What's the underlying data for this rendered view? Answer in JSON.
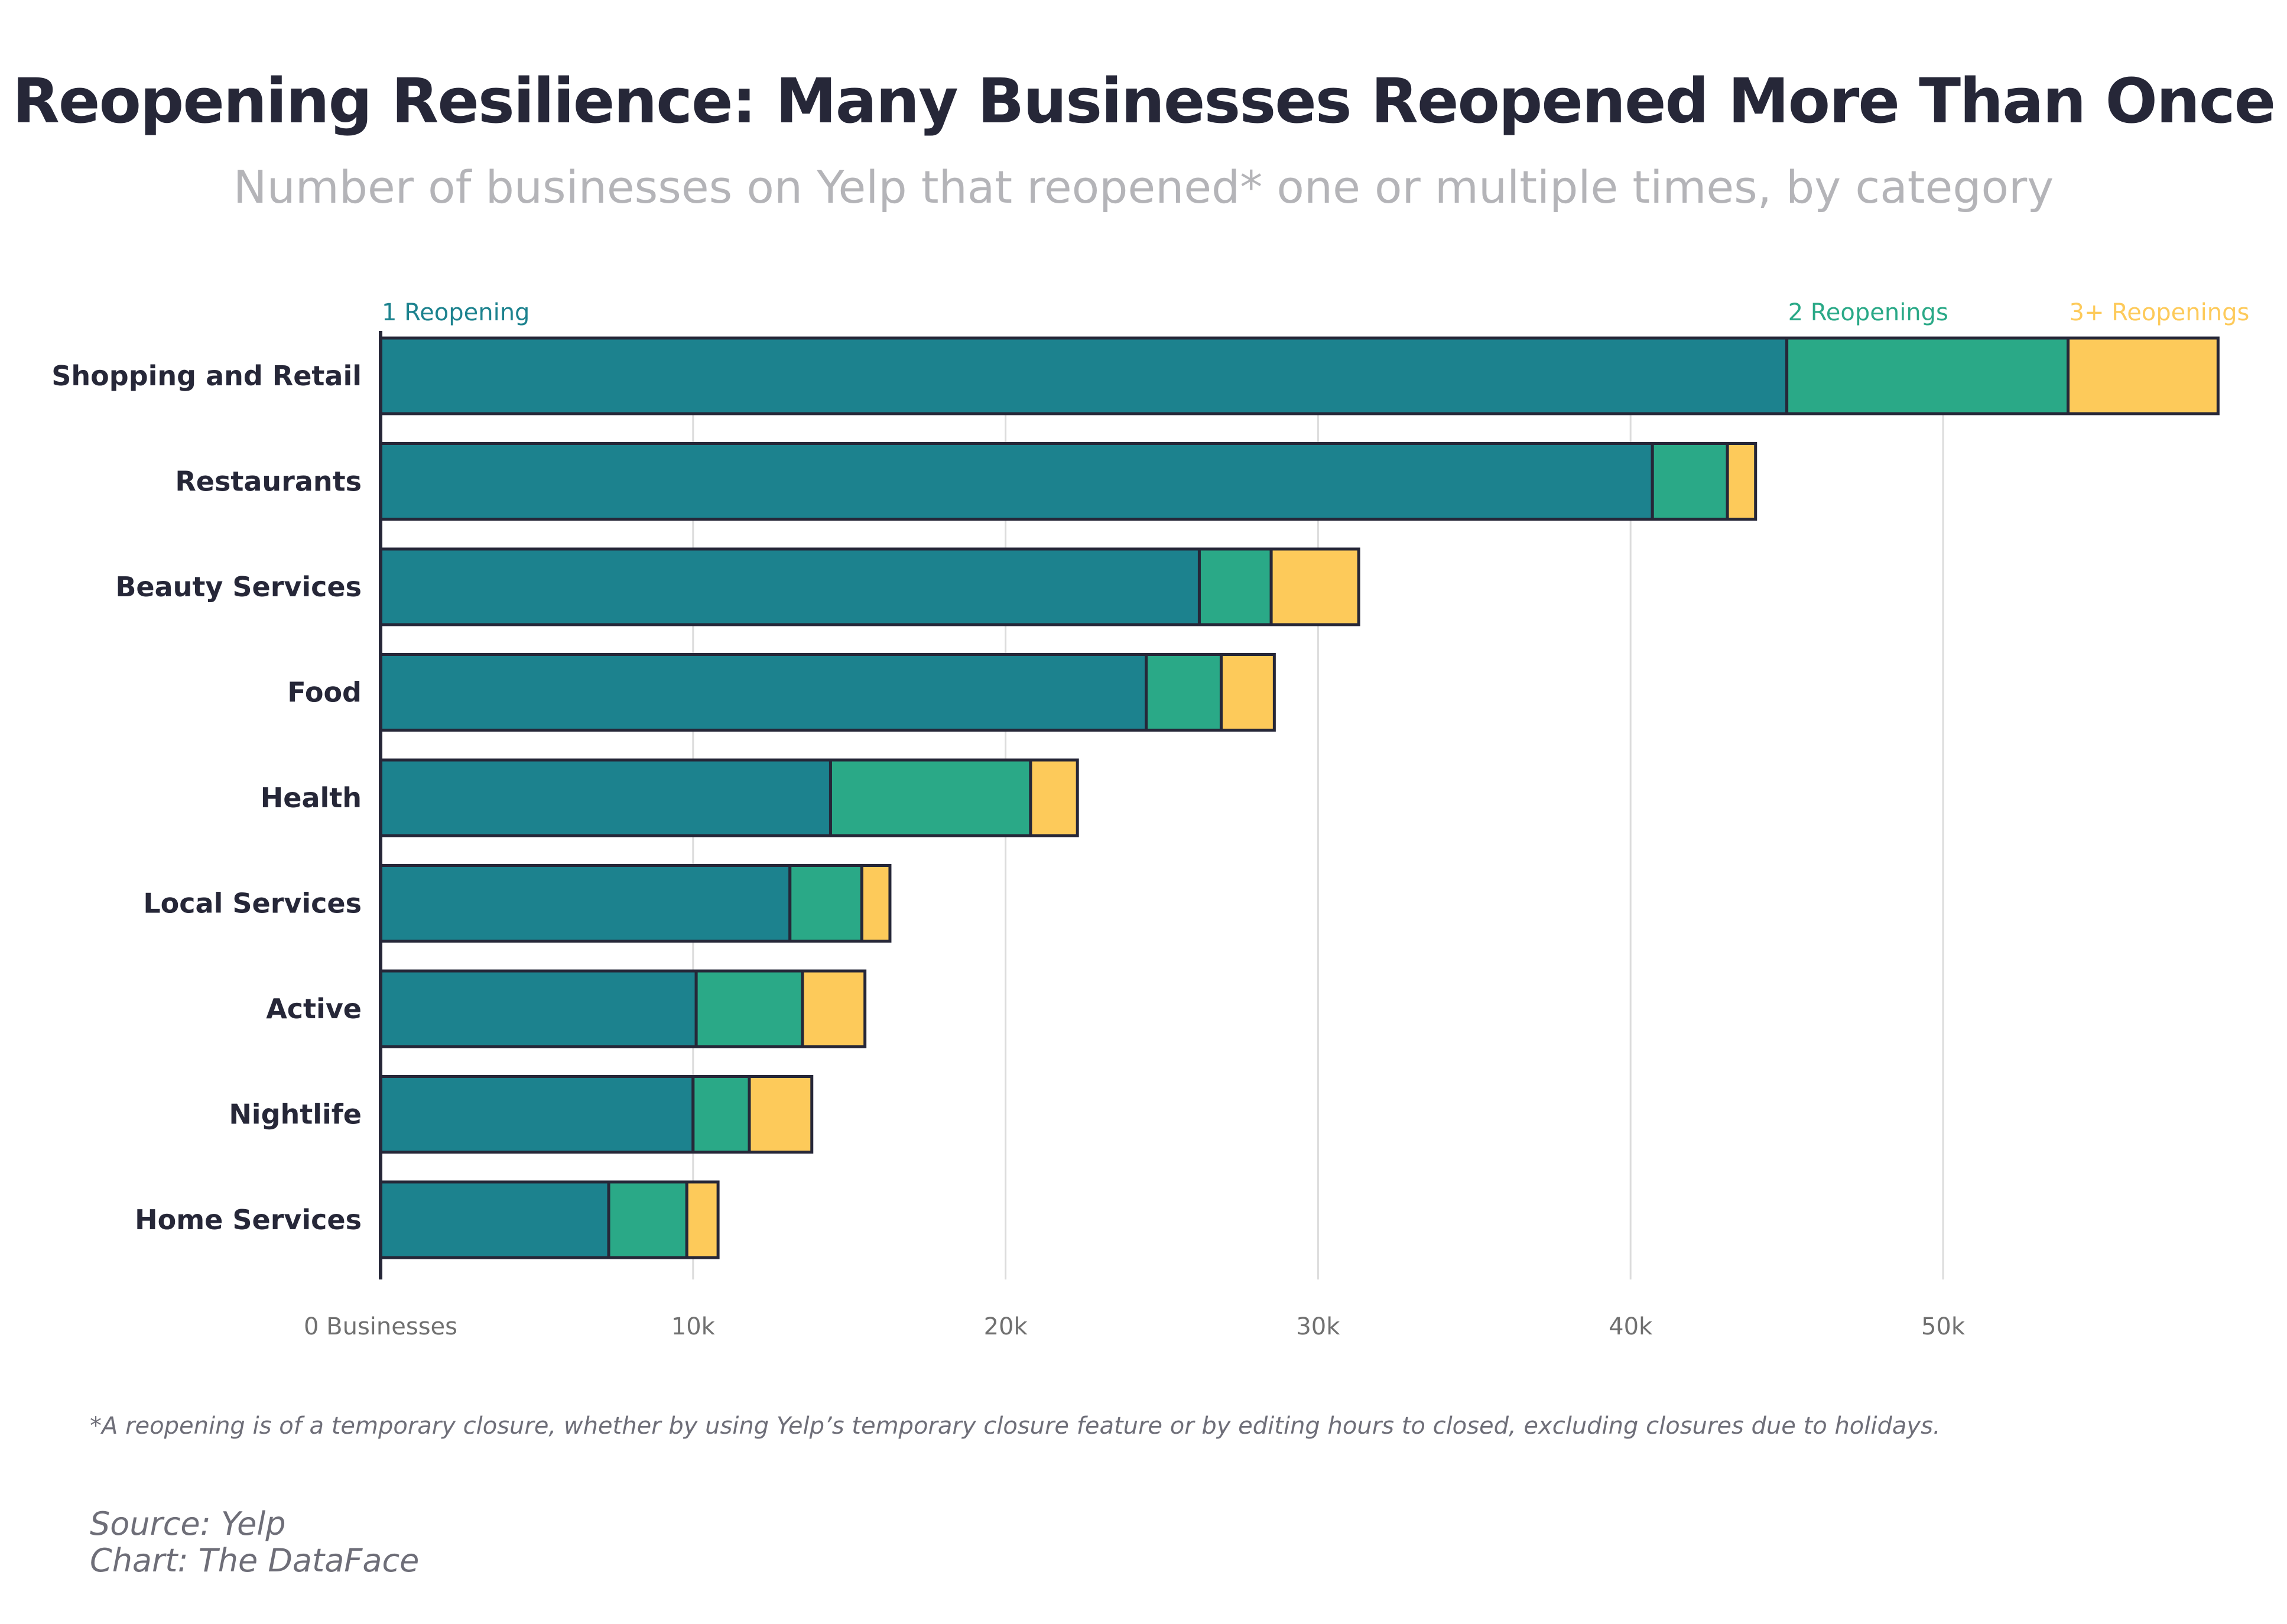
{
  "title": "Reopening Resilience: Many Businesses Reopened More Than Once",
  "subtitle": "Number of businesses on Yelp that reopened* one or multiple times, by category",
  "footnote": "*A reopening is of a temporary closure, whether by using Yelp’s temporary closure feature or by editing hours to closed, excluding closures due to holidays.",
  "source": "Source: Yelp",
  "credit": "Chart: The DataFace",
  "colors": {
    "one": "#1c828e",
    "two": "#2aa987",
    "three": "#fdca5a",
    "outline": "#262738",
    "grid": "#dcdcdc"
  },
  "chart_data": {
    "type": "bar",
    "orientation": "horizontal",
    "stacked": true,
    "categories": [
      "Shopping and Retail",
      "Restaurants",
      "Beauty Services",
      "Food",
      "Health",
      "Local Services",
      "Active",
      "Nightlife",
      "Home Services"
    ],
    "series": [
      {
        "name": "1 Reopening",
        "values": [
          45000,
          40700,
          26200,
          24500,
          14400,
          13100,
          10100,
          10000,
          7300
        ]
      },
      {
        "name": "2 Reopenings",
        "values": [
          9000,
          2400,
          2300,
          2400,
          6400,
          2300,
          3400,
          1800,
          2500
        ]
      },
      {
        "name": "3+ Reopenings",
        "values": [
          4800,
          900,
          2800,
          1700,
          1500,
          900,
          2000,
          2000,
          1000
        ]
      }
    ],
    "x_ticks": [
      0,
      10000,
      20000,
      30000,
      40000,
      50000
    ],
    "x_tick_labels": [
      "0 Businesses",
      "10k",
      "20k",
      "30k",
      "40k",
      "50k"
    ],
    "xlim": [
      0,
      60000
    ],
    "grid": true,
    "legend": "inline labels above the top bar"
  }
}
